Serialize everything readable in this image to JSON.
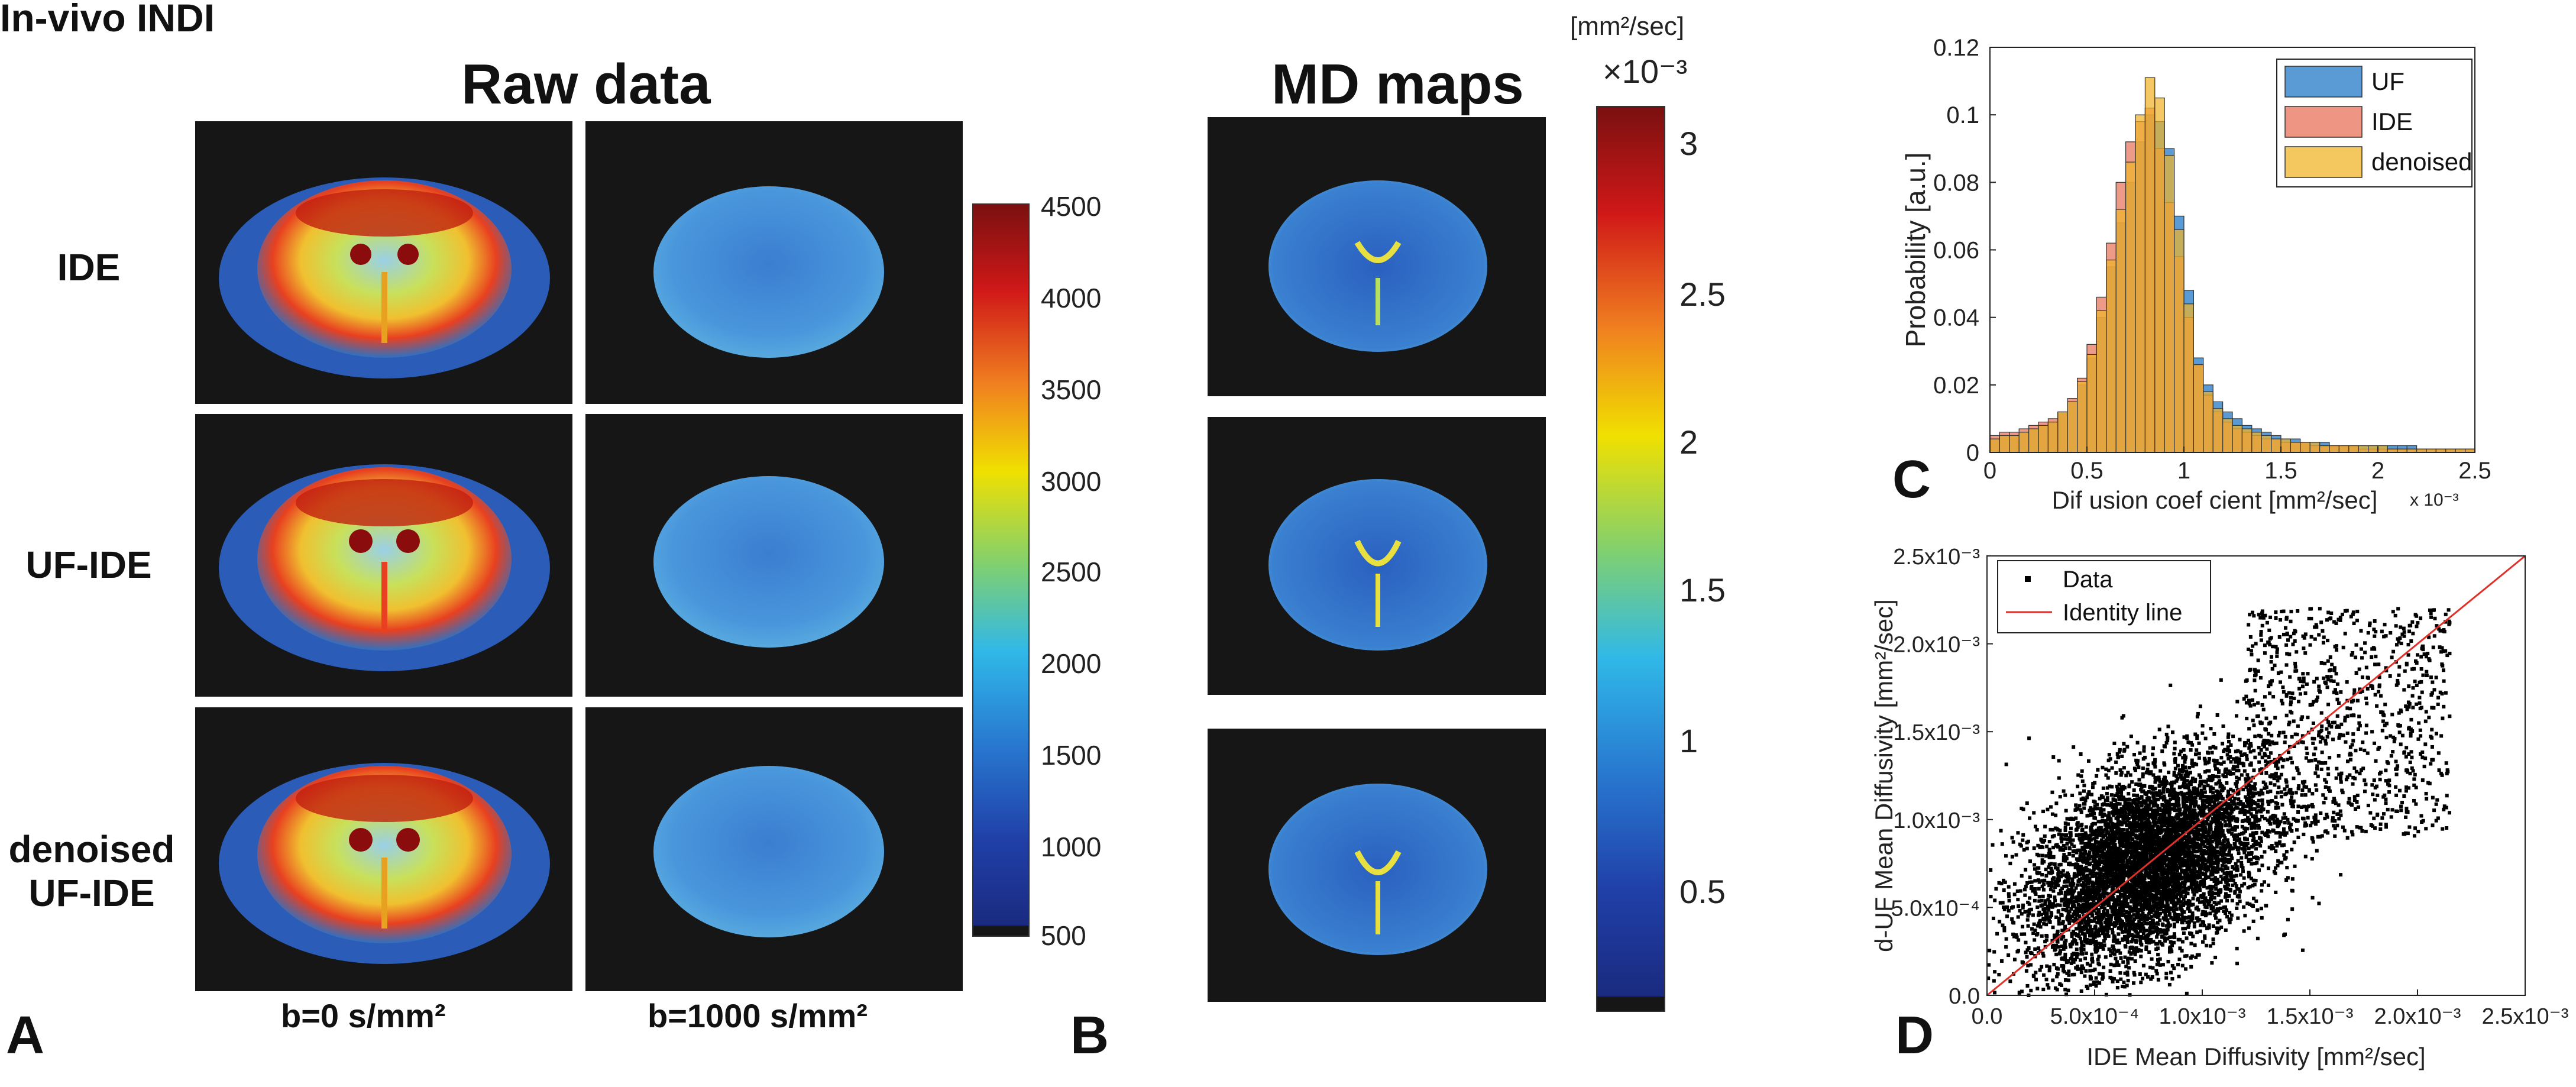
{
  "figure": {
    "title": "In-vivo INDI",
    "raw_data_title": "Raw data",
    "md_maps_title": "MD maps",
    "row_labels": [
      "IDE",
      "UF-IDE",
      "denoised\nUF-IDE"
    ],
    "col_labels": [
      "b=0 s/mm²",
      "b=1000 s/mm²"
    ],
    "panel_labels": {
      "A": "A",
      "B": "B",
      "C": "C",
      "D": "D"
    },
    "colorbar_raw": {
      "ticks": [
        "4500",
        "4000",
        "3500",
        "3000",
        "2500",
        "2000",
        "1500",
        "1000",
        "500"
      ]
    },
    "colorbar_md": {
      "unit": "[mm²/sec]",
      "scale": "×10⁻³",
      "ticks": [
        "3",
        "2.5",
        "2",
        "1.5",
        "1",
        "0.5"
      ]
    }
  },
  "chart_data": [
    {
      "type": "bar",
      "title": "",
      "xlabel": "Dif usion coef  cient [mm²/sec]",
      "x_scale_label": "x 10⁻³",
      "ylabel": "Probability [a.u.]",
      "xlim": [
        0,
        2.5
      ],
      "ylim": [
        0,
        0.12
      ],
      "xticks": [
        "0",
        "0.5",
        "1",
        "1.5",
        "2",
        "2.5"
      ],
      "yticks": [
        "0",
        "0.02",
        "0.04",
        "0.06",
        "0.08",
        "0.1",
        "0.12"
      ],
      "bin_width": 0.05,
      "bin_start": 0,
      "legend": [
        "UF",
        "IDE",
        "denoised"
      ],
      "legend_position": "top-right",
      "series": [
        {
          "name": "UF",
          "color": "#5b9bd5",
          "values": [
            0.004,
            0.005,
            0.005,
            0.006,
            0.007,
            0.008,
            0.009,
            0.012,
            0.015,
            0.02,
            0.028,
            0.04,
            0.055,
            0.068,
            0.08,
            0.092,
            0.1,
            0.098,
            0.09,
            0.07,
            0.048,
            0.028,
            0.02,
            0.015,
            0.012,
            0.01,
            0.008,
            0.007,
            0.006,
            0.005,
            0.004,
            0.004,
            0.003,
            0.003,
            0.003,
            0.002,
            0.002,
            0.002,
            0.002,
            0.002,
            0.002,
            0.002,
            0.002,
            0.002,
            0.001,
            0.001,
            0.001,
            0.001,
            0.001,
            0.001
          ]
        },
        {
          "name": "IDE",
          "color": "#e8735a",
          "values": [
            0.005,
            0.006,
            0.006,
            0.007,
            0.008,
            0.009,
            0.01,
            0.012,
            0.016,
            0.022,
            0.032,
            0.046,
            0.062,
            0.08,
            0.092,
            0.098,
            0.102,
            0.09,
            0.074,
            0.058,
            0.04,
            0.026,
            0.017,
            0.012,
            0.009,
            0.007,
            0.006,
            0.005,
            0.004,
            0.004,
            0.003,
            0.003,
            0.003,
            0.002,
            0.002,
            0.002,
            0.002,
            0.002,
            0.001,
            0.001,
            0.001,
            0.001,
            0.001,
            0.001,
            0.001,
            0.001,
            0.001,
            0.001,
            0.001,
            0.001
          ]
        },
        {
          "name": "denoised",
          "color": "#f0b429",
          "values": [
            0.004,
            0.005,
            0.005,
            0.006,
            0.007,
            0.008,
            0.009,
            0.012,
            0.015,
            0.021,
            0.029,
            0.042,
            0.057,
            0.072,
            0.086,
            0.1,
            0.111,
            0.105,
            0.088,
            0.066,
            0.044,
            0.026,
            0.018,
            0.013,
            0.01,
            0.008,
            0.007,
            0.006,
            0.005,
            0.004,
            0.004,
            0.003,
            0.003,
            0.003,
            0.002,
            0.002,
            0.002,
            0.002,
            0.002,
            0.002,
            0.002,
            0.001,
            0.001,
            0.001,
            0.001,
            0.001,
            0.001,
            0.001,
            0.001,
            0.001
          ]
        }
      ]
    },
    {
      "type": "scatter",
      "title": "",
      "xlabel": "IDE Mean Diffusivity [mm²/sec]",
      "ylabel": "d-UF Mean Diffusivity [mm²/sec]",
      "xlim": [
        0,
        0.0025
      ],
      "ylim": [
        0,
        0.0025
      ],
      "xticks": [
        "0.0",
        "5.0x10⁻⁴",
        "1.0x10⁻³",
        "1.5x10⁻³",
        "2.0x10⁻³",
        "2.5x10⁻³"
      ],
      "yticks": [
        "0.0",
        "5.0x10⁻⁴",
        "1.0x10⁻³",
        "1.5x10⁻³",
        "2.0x10⁻³",
        "2.5x10⁻³"
      ],
      "legend": [
        "Data",
        "Identity line"
      ],
      "legend_position": "top-left",
      "series": [
        {
          "name": "Data",
          "color": "#000000",
          "cluster": {
            "center_x": 0.00075,
            "center_y": 0.00075,
            "std_x": 0.00028,
            "std_y": 0.0003,
            "n": 6000
          },
          "upper_tail": {
            "x_range": [
              0.0012,
              0.00215
            ],
            "y_range": [
              0.0009,
              0.0022
            ],
            "n": 900
          }
        },
        {
          "name": "Identity line",
          "color": "#e0302a",
          "x": [
            0,
            0.0025
          ],
          "y": [
            0,
            0.0025
          ]
        }
      ]
    }
  ]
}
